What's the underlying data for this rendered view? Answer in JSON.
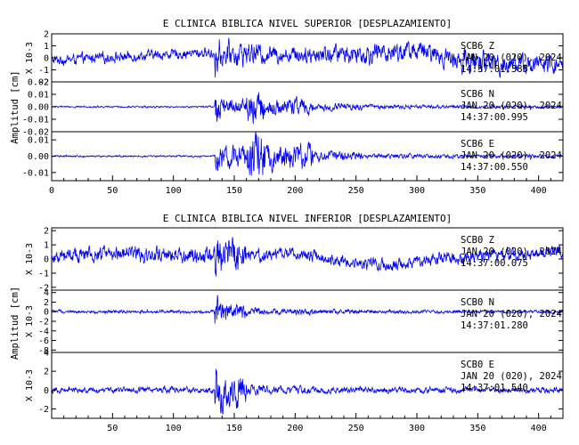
{
  "colors": {
    "trace": "#0000ff",
    "axis": "#000000"
  },
  "x_tick_labels": [
    "50",
    "100",
    "150",
    "200",
    "250",
    "300",
    "350",
    "400"
  ],
  "chart_data": [
    {
      "type": "line",
      "title": "E CLINICA BIBLICA NIVEL SUPERIOR [DESPLAZAMIENTO]",
      "ylabel": "Amplitud [cm]",
      "xlim": [
        0,
        420
      ],
      "panels": [
        {
          "name": "SCB6   Z",
          "scale_label": "X 10-3",
          "ylim": [
            -2,
            2
          ],
          "yticks": [
            -2,
            -1,
            0,
            1,
            2
          ],
          "ytick_labels": [
            "-2",
            "-1",
            "0",
            "1",
            "2"
          ],
          "date": "JAN 20 (020), 2024",
          "time": "14:37:01.385",
          "event_x": 135,
          "env": [
            0.25,
            0.5,
            0.6,
            0.7,
            1.0,
            0.55,
            0.45,
            0.5,
            0.55,
            0.5,
            0.65,
            0.5,
            0.35
          ],
          "spike_amp": 1.9,
          "noise": 0.45,
          "trend": [
            [
              0,
              -0.2
            ],
            [
              60,
              0.1
            ],
            [
              120,
              0.4
            ],
            [
              200,
              0.3
            ],
            [
              260,
              0.4
            ],
            [
              300,
              0.6
            ],
            [
              340,
              -0.3
            ],
            [
              420,
              -0.6
            ]
          ]
        },
        {
          "name": "SCB6   N",
          "scale_label": "",
          "ylim": [
            -0.02,
            0.02
          ],
          "yticks": [
            -0.02,
            -0.01,
            0,
            0.01,
            0.02
          ],
          "ytick_labels": [
            "-0.02",
            "-0.01",
            "0.00",
            "0.01",
            "0.02"
          ],
          "date": "JAN 20 (020), 2024",
          "time": "14:37:00.995",
          "event_x": 135,
          "env": [
            0.02,
            0.03,
            0.03,
            0.04,
            1.0,
            0.4,
            0.18,
            0.08,
            0.05,
            0.04,
            0.04,
            0.04,
            0.03
          ],
          "spike_amp": 0.015,
          "noise": 0.0008,
          "trend": [
            [
              0,
              0
            ],
            [
              420,
              0
            ]
          ]
        },
        {
          "name": "SCB6   E",
          "scale_label": "",
          "ylim": [
            -0.015,
            0.015
          ],
          "yticks": [
            -0.01,
            0,
            0.01
          ],
          "ytick_labels": [
            "-0.01",
            "0.00",
            "0.01"
          ],
          "date": "JAN 20 (020), 2024",
          "time": "14:37:00.550",
          "event_x": 135,
          "env": [
            0.02,
            0.03,
            0.03,
            0.04,
            1.0,
            0.55,
            0.3,
            0.12,
            0.06,
            0.05,
            0.04,
            0.04,
            0.03
          ],
          "spike_amp": 0.012,
          "noise": 0.0006,
          "trend": [
            [
              0,
              0
            ],
            [
              420,
              0
            ]
          ]
        }
      ]
    },
    {
      "type": "line",
      "title": "E CLINICA BIBLICA NIVEL INFERIOR [DESPLAZAMIENTO]",
      "ylabel": "Amplitud [cm]",
      "xlim": [
        0,
        420
      ],
      "panels": [
        {
          "name": "SCB0   Z",
          "scale_label": "X 10-3",
          "ylim": [
            -2.2,
            2.2
          ],
          "yticks": [
            -2,
            -1,
            0,
            1,
            2
          ],
          "ytick_labels": [
            "-2",
            "-1",
            "0",
            "1",
            "2"
          ],
          "date": "JAN 20 (020), 2024",
          "time": "14:37:00.075",
          "event_x": 135,
          "env": [
            0.6,
            0.7,
            0.7,
            0.75,
            1.0,
            0.6,
            0.5,
            0.5,
            0.5,
            0.5,
            0.55,
            0.5,
            0.6
          ],
          "spike_amp": 2.0,
          "noise": 0.6,
          "trend": [
            [
              0,
              0.2
            ],
            [
              60,
              0.5
            ],
            [
              120,
              0.2
            ],
            [
              200,
              0.4
            ],
            [
              240,
              -0.2
            ],
            [
              280,
              -0.5
            ],
            [
              320,
              0.1
            ],
            [
              380,
              0.3
            ],
            [
              420,
              0.6
            ]
          ]
        },
        {
          "name": "SCB0   N",
          "scale_label": "X 10-3",
          "ylim": [
            -8.5,
            4.5
          ],
          "yticks": [
            -8,
            -6,
            -4,
            -2,
            0,
            2,
            4
          ],
          "ytick_labels": [
            "-8",
            "-6",
            "-4",
            "-2",
            "0",
            "2",
            "4"
          ],
          "date": "JAN 20 (020), 2024",
          "time": "14:37:01.280",
          "event_x": 135,
          "env": [
            0.15,
            0.18,
            0.2,
            0.22,
            1.0,
            0.4,
            0.3,
            0.25,
            0.2,
            0.18,
            0.18,
            0.17,
            0.16
          ],
          "spike_amp": 4.5,
          "noise": 0.35,
          "trend": [
            [
              0,
              0
            ],
            [
              420,
              0
            ]
          ]
        },
        {
          "name": "SCB0   E",
          "scale_label": "X 10-3",
          "ylim": [
            -3,
            4
          ],
          "yticks": [
            -2,
            0,
            2,
            4
          ],
          "ytick_labels": [
            "-2",
            "0",
            "2",
            "4"
          ],
          "date": "JAN 20 (020), 2024",
          "time": "14:37:01.540",
          "event_x": 135,
          "env": [
            0.3,
            0.35,
            0.4,
            0.45,
            1.0,
            0.55,
            0.4,
            0.35,
            0.3,
            0.3,
            0.3,
            0.28,
            0.28
          ],
          "spike_amp": 3.2,
          "noise": 0.35,
          "trend": [
            [
              0,
              0
            ],
            [
              420,
              0
            ]
          ]
        }
      ]
    }
  ]
}
